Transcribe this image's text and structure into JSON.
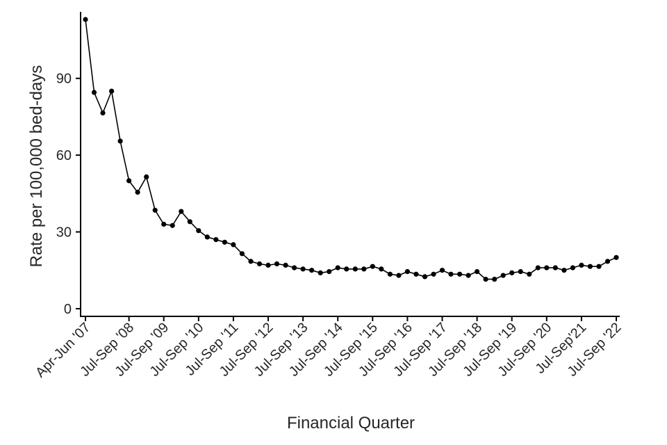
{
  "chart_data": {
    "type": "line",
    "xlabel": "Financial Quarter",
    "ylabel": "Rate per 100,000 bed-days",
    "ylim": [
      -3,
      116
    ],
    "y_ticks": [
      0,
      30,
      60,
      90
    ],
    "x_tick_labels": [
      "Apr-Jun '07",
      "Jul-Sep '08",
      "Jul-Sep '09",
      "Jul-Sep '10",
      "Jul-Sep '11",
      "Jul-Sep '12",
      "Jul-Sep '13",
      "Jul-Sep '14",
      "Jul-Sep '15",
      "Jul-Sep '16",
      "Jul-Sep '17",
      "Jul-Sep '18",
      "Jul-Sep '19",
      "Jul-Sep '20",
      "Jul-Sep'21",
      "Jul-Sep '22"
    ],
    "x_tick_positions": [
      0,
      5,
      9,
      13,
      17,
      21,
      25,
      29,
      33,
      37,
      41,
      45,
      49,
      53,
      57,
      61
    ],
    "grid": false,
    "legend": "none",
    "line_color": "#000000",
    "series": [
      {
        "values": [
          113,
          84.5,
          76.5,
          85,
          65.5,
          50,
          45.5,
          51.5,
          38.5,
          33,
          32.5,
          38,
          34,
          30.5,
          28,
          27,
          26,
          25,
          21.5,
          18.5,
          17.5,
          17,
          17.5,
          17,
          16,
          15.5,
          15,
          14,
          14.5,
          16,
          15.5,
          15.5,
          15.5,
          16.5,
          15.5,
          13.5,
          13,
          14.5,
          13.5,
          12.5,
          13.5,
          15,
          13.5,
          13.5,
          13,
          14.5,
          11.5,
          11.5,
          13,
          14,
          14.5,
          13.5,
          16,
          16,
          16,
          15,
          16,
          17,
          16.5,
          16.5,
          18.5,
          20
        ]
      }
    ]
  }
}
